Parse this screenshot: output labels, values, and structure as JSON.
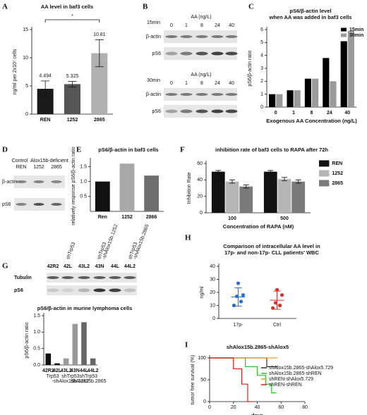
{
  "chart_data": [
    {
      "panel": "A",
      "type": "bar",
      "title": [
        "AA level in baf3 cells"
      ],
      "ylabel": "ng/ml per 2x10⁷ cells",
      "categories": [
        "REN",
        "1252",
        "2865"
      ],
      "values": [
        4.494,
        5.325,
        10.81
      ],
      "value_labels": [
        "4.494",
        "5.325",
        "10.81"
      ],
      "errors": [
        1.4,
        0.5,
        2.4
      ],
      "colors": [
        "#1a1a1a",
        "#555555",
        "#b0b0b0"
      ],
      "ylim": [
        0,
        15
      ],
      "yticks": [
        0,
        5,
        10,
        15
      ],
      "annotation": "*"
    },
    {
      "panel": "C",
      "type": "bar",
      "title": [
        "pS6/β-actin level",
        "when AA was added in baf3 cells"
      ],
      "xlabel": "Exogenous AA Concentration (ng/L)",
      "ylabel": "pS6/β-actin ratio",
      "categories": [
        "0",
        "1",
        "8",
        "24",
        "40"
      ],
      "series": [
        {
          "name": "15min",
          "color": "#000000",
          "values": [
            1,
            1.3,
            2.2,
            3.8,
            5.1
          ]
        },
        {
          "name": "30min",
          "color": "#9a9a9a",
          "values": [
            1,
            1.3,
            2.2,
            2,
            5.9
          ]
        }
      ],
      "ylim": [
        0,
        6
      ],
      "yticks": [
        0,
        1,
        2,
        3,
        4,
        5,
        6
      ],
      "legend": "top-left"
    },
    {
      "panel": "E",
      "type": "bar",
      "title": [
        "pS6/β-actin in baf3 cells"
      ],
      "ylabel": "relatively response pS6/β-actin ratio",
      "categories": [
        "Ren",
        "1252",
        "2866"
      ],
      "values": [
        1,
        1.6,
        1.2
      ],
      "colors": [
        "#111111",
        "#a8a8a8",
        "#6e6e6e"
      ],
      "ylim": [
        0,
        1.7
      ],
      "yticks": [
        0.5,
        {
          "value": 1,
          "label": "1.0"
        },
        1.5
      ]
    },
    {
      "panel": "F",
      "type": "bar",
      "title": [
        "inhibition rate of baf3 cells to RAPA after 72h"
      ],
      "xlabel": "Concentration of RAPA (nM)",
      "ylabel": "Inhibition Rate",
      "categories": [
        "100",
        "500"
      ],
      "series": [
        {
          "name": "REN",
          "color": "#111111",
          "values": [
            50,
            50
          ],
          "errors": [
            1.5,
            1.5
          ]
        },
        {
          "name": "1252",
          "color": "#b5b5b5",
          "values": [
            38,
            41
          ],
          "errors": [
            2,
            2
          ]
        },
        {
          "name": "2865",
          "color": "#7a7a7a",
          "values": [
            32,
            38
          ],
          "errors": [
            2,
            2
          ]
        }
      ],
      "ylim": [
        0,
        60
      ],
      "yticks": [
        0,
        20,
        40,
        60
      ],
      "legend": "right"
    },
    {
      "panel": "G",
      "type": "bar",
      "title": [
        "pS6/β-actin in murine lymphoma cells"
      ],
      "ylabel": "pS6/β-actin ratio",
      "categories": [
        "42R2",
        "42L",
        "43L2",
        "43N",
        "44L",
        "44L2"
      ],
      "values": [
        0.35,
        0.05,
        0.2,
        1.25,
        1.3,
        0.2
      ],
      "colors": [
        "#111111",
        "#111111",
        "#999999",
        "#999999",
        "#666666",
        "#666666"
      ],
      "group_labels": [
        [
          "Trp53"
        ],
        [
          "shTrp53",
          "-shAlox15b.1252"
        ],
        [
          "shTrp53",
          "shAlox15b.2865"
        ]
      ],
      "ylim": [
        0,
        1.5
      ],
      "yticks": [
        {
          "value": 0,
          "label": "0.0"
        },
        0.5,
        {
          "value": 1,
          "label": "1.0"
        },
        1.5
      ]
    },
    {
      "panel": "H",
      "type": "scatter",
      "title": [
        "Comparison of intracellular AA level in",
        "17p- and non-17p- CLL patients' WBC"
      ],
      "ylabel": "ng/ml",
      "categories": [
        "17p-",
        "Ctrl"
      ],
      "groups": [
        {
          "color": "#2a6fd0",
          "values": [
            10,
            13,
            17,
            18,
            27
          ],
          "mean": 16.5,
          "sd": 7
        },
        {
          "color": "#d8322a",
          "values": [
            8,
            10,
            12,
            18,
            22
          ],
          "mean": 14,
          "sd": 7
        }
      ],
      "ylim": [
        0,
        40
      ],
      "yticks": [
        0,
        10,
        20,
        30,
        40
      ]
    },
    {
      "panel": "I",
      "type": "line",
      "title": [
        "shAlox15b.2865-shAlox5"
      ],
      "xlabel": "days",
      "ylabel": "tumor free survival (%)",
      "series": [
        {
          "name": "shAlox15b.2865-shAlox5.729",
          "color": "#333333",
          "x": [
            0,
            48,
            48,
            57
          ],
          "values": [
            100,
            100,
            80,
            80
          ]
        },
        {
          "name": "shAlox15b.2865-shREN",
          "color": "#2fbf2f",
          "x": [
            0,
            30,
            30,
            40,
            40,
            47,
            47,
            52,
            52,
            56
          ],
          "values": [
            100,
            100,
            80,
            80,
            60,
            60,
            40,
            40,
            20,
            20
          ]
        },
        {
          "name": "shREN-shAlox5.729",
          "color": "#e8a020",
          "x": [
            0,
            57
          ],
          "values": [
            100,
            100
          ]
        },
        {
          "name": "shREN-shREN",
          "color": "#e02020",
          "x": [
            0,
            20,
            20,
            27,
            27,
            32,
            32,
            36
          ],
          "values": [
            100,
            100,
            75,
            75,
            40,
            40,
            0,
            0
          ]
        }
      ],
      "xlim": [
        0,
        80
      ],
      "xticks": [
        0,
        20,
        40,
        60,
        80
      ],
      "ylim": [
        0,
        100
      ],
      "yticks": [
        0,
        50,
        100
      ],
      "legend": "right"
    }
  ],
  "blots": {
    "B": {
      "panel": "B",
      "header": "AA (ng/L)",
      "times": [
        "15min",
        "30min"
      ],
      "lanes": [
        "0",
        "1",
        "8",
        "24",
        "40"
      ],
      "rows": [
        "β-actin",
        "pS6"
      ]
    },
    "D": {
      "panel": "D",
      "groups": [
        "Control",
        "Alox15b-deficient"
      ],
      "lanes": [
        "REN",
        "1252",
        "2865"
      ],
      "rows": [
        "β-actin",
        "pS6"
      ]
    },
    "G": {
      "groups": [
        [
          "shTrp53"
        ],
        [
          "shTrp53",
          "-shAlox15b.1252"
        ],
        [
          "shTrp53",
          "-shAlox15b.2865"
        ]
      ],
      "lanes": [
        "42R2",
        "42L",
        "43L2",
        "43N",
        "44L",
        "44L2"
      ],
      "rows": [
        "Tubulin",
        "pS6"
      ]
    }
  }
}
